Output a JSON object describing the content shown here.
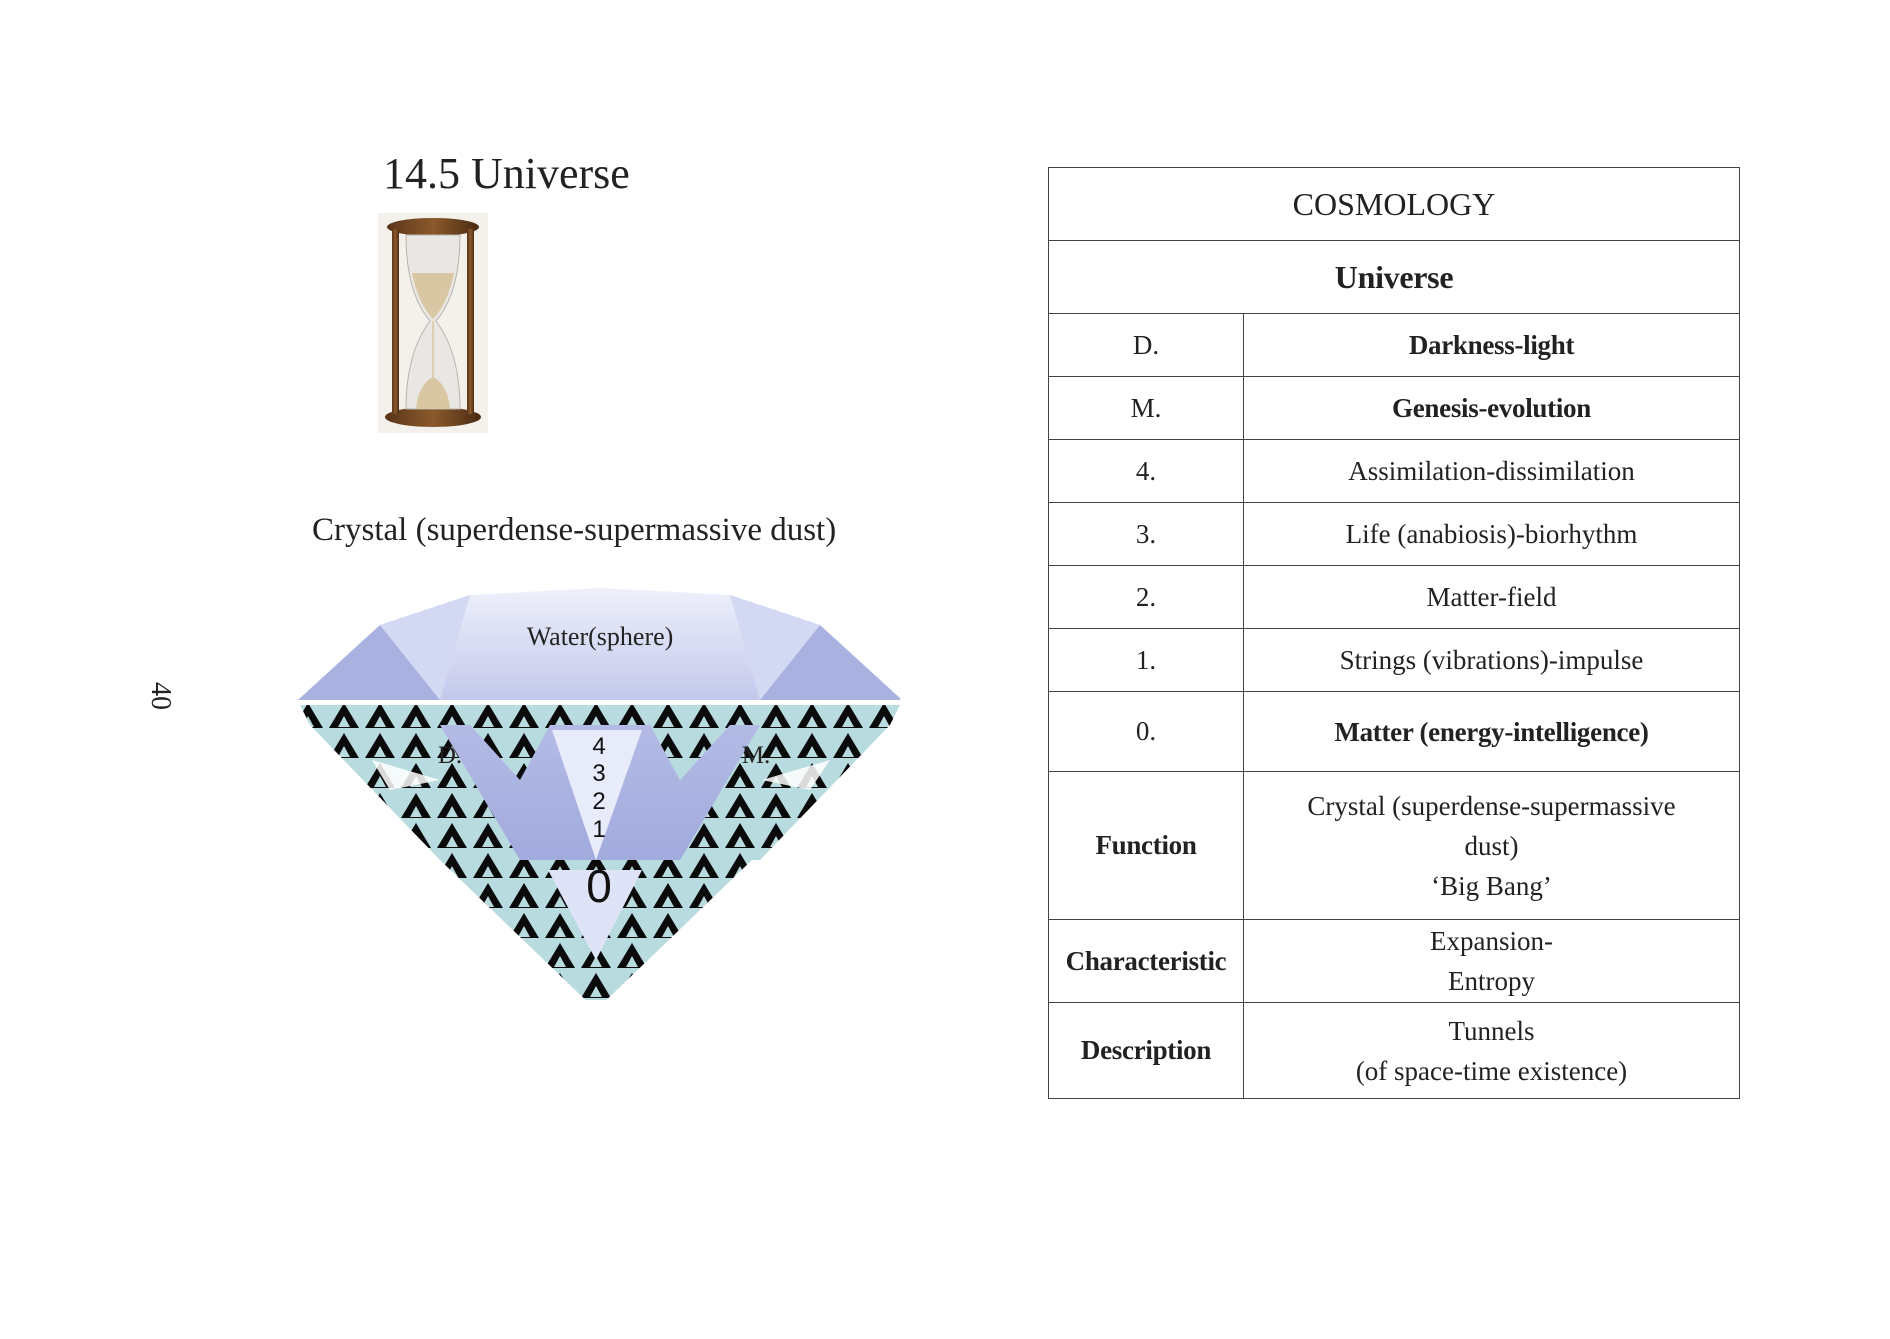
{
  "page": {
    "title": "14.5 Universe",
    "page_number": "40"
  },
  "illustration": {
    "caption": "Crystal (superdense-supermassive dust)",
    "crown_label": "Water(sphere)",
    "left_label": "D.",
    "right_label": "M.",
    "levels": [
      "4",
      "3",
      "2",
      "1"
    ],
    "core": "0"
  },
  "table": {
    "header": "COSMOLOGY",
    "subheader": "Universe",
    "rows": [
      {
        "key": "D.",
        "value": "Darkness-light"
      },
      {
        "key": "M.",
        "value": "Genesis-evolution"
      },
      {
        "key": "4.",
        "value": "Assimilation-dissimilation"
      },
      {
        "key": "3.",
        "value": "Life (anabiosis)-biorhythm"
      },
      {
        "key": "2.",
        "value": "Matter-field"
      },
      {
        "key": "1.",
        "value": "Strings (vibrations)-impulse"
      },
      {
        "key": "0.",
        "value": "Matter (energy-intelligence)"
      }
    ],
    "function": {
      "key": "Function",
      "line1": "Crystal (superdense-supermassive",
      "line2": "dust)",
      "line3": "‘Big Bang’"
    },
    "characteristic": {
      "key": "Characteristic",
      "line1": "Expansion-",
      "line2": "Entropy"
    },
    "description": {
      "key": "Description",
      "line1": "Tunnels",
      "line2": "(of space-time existence)"
    }
  }
}
